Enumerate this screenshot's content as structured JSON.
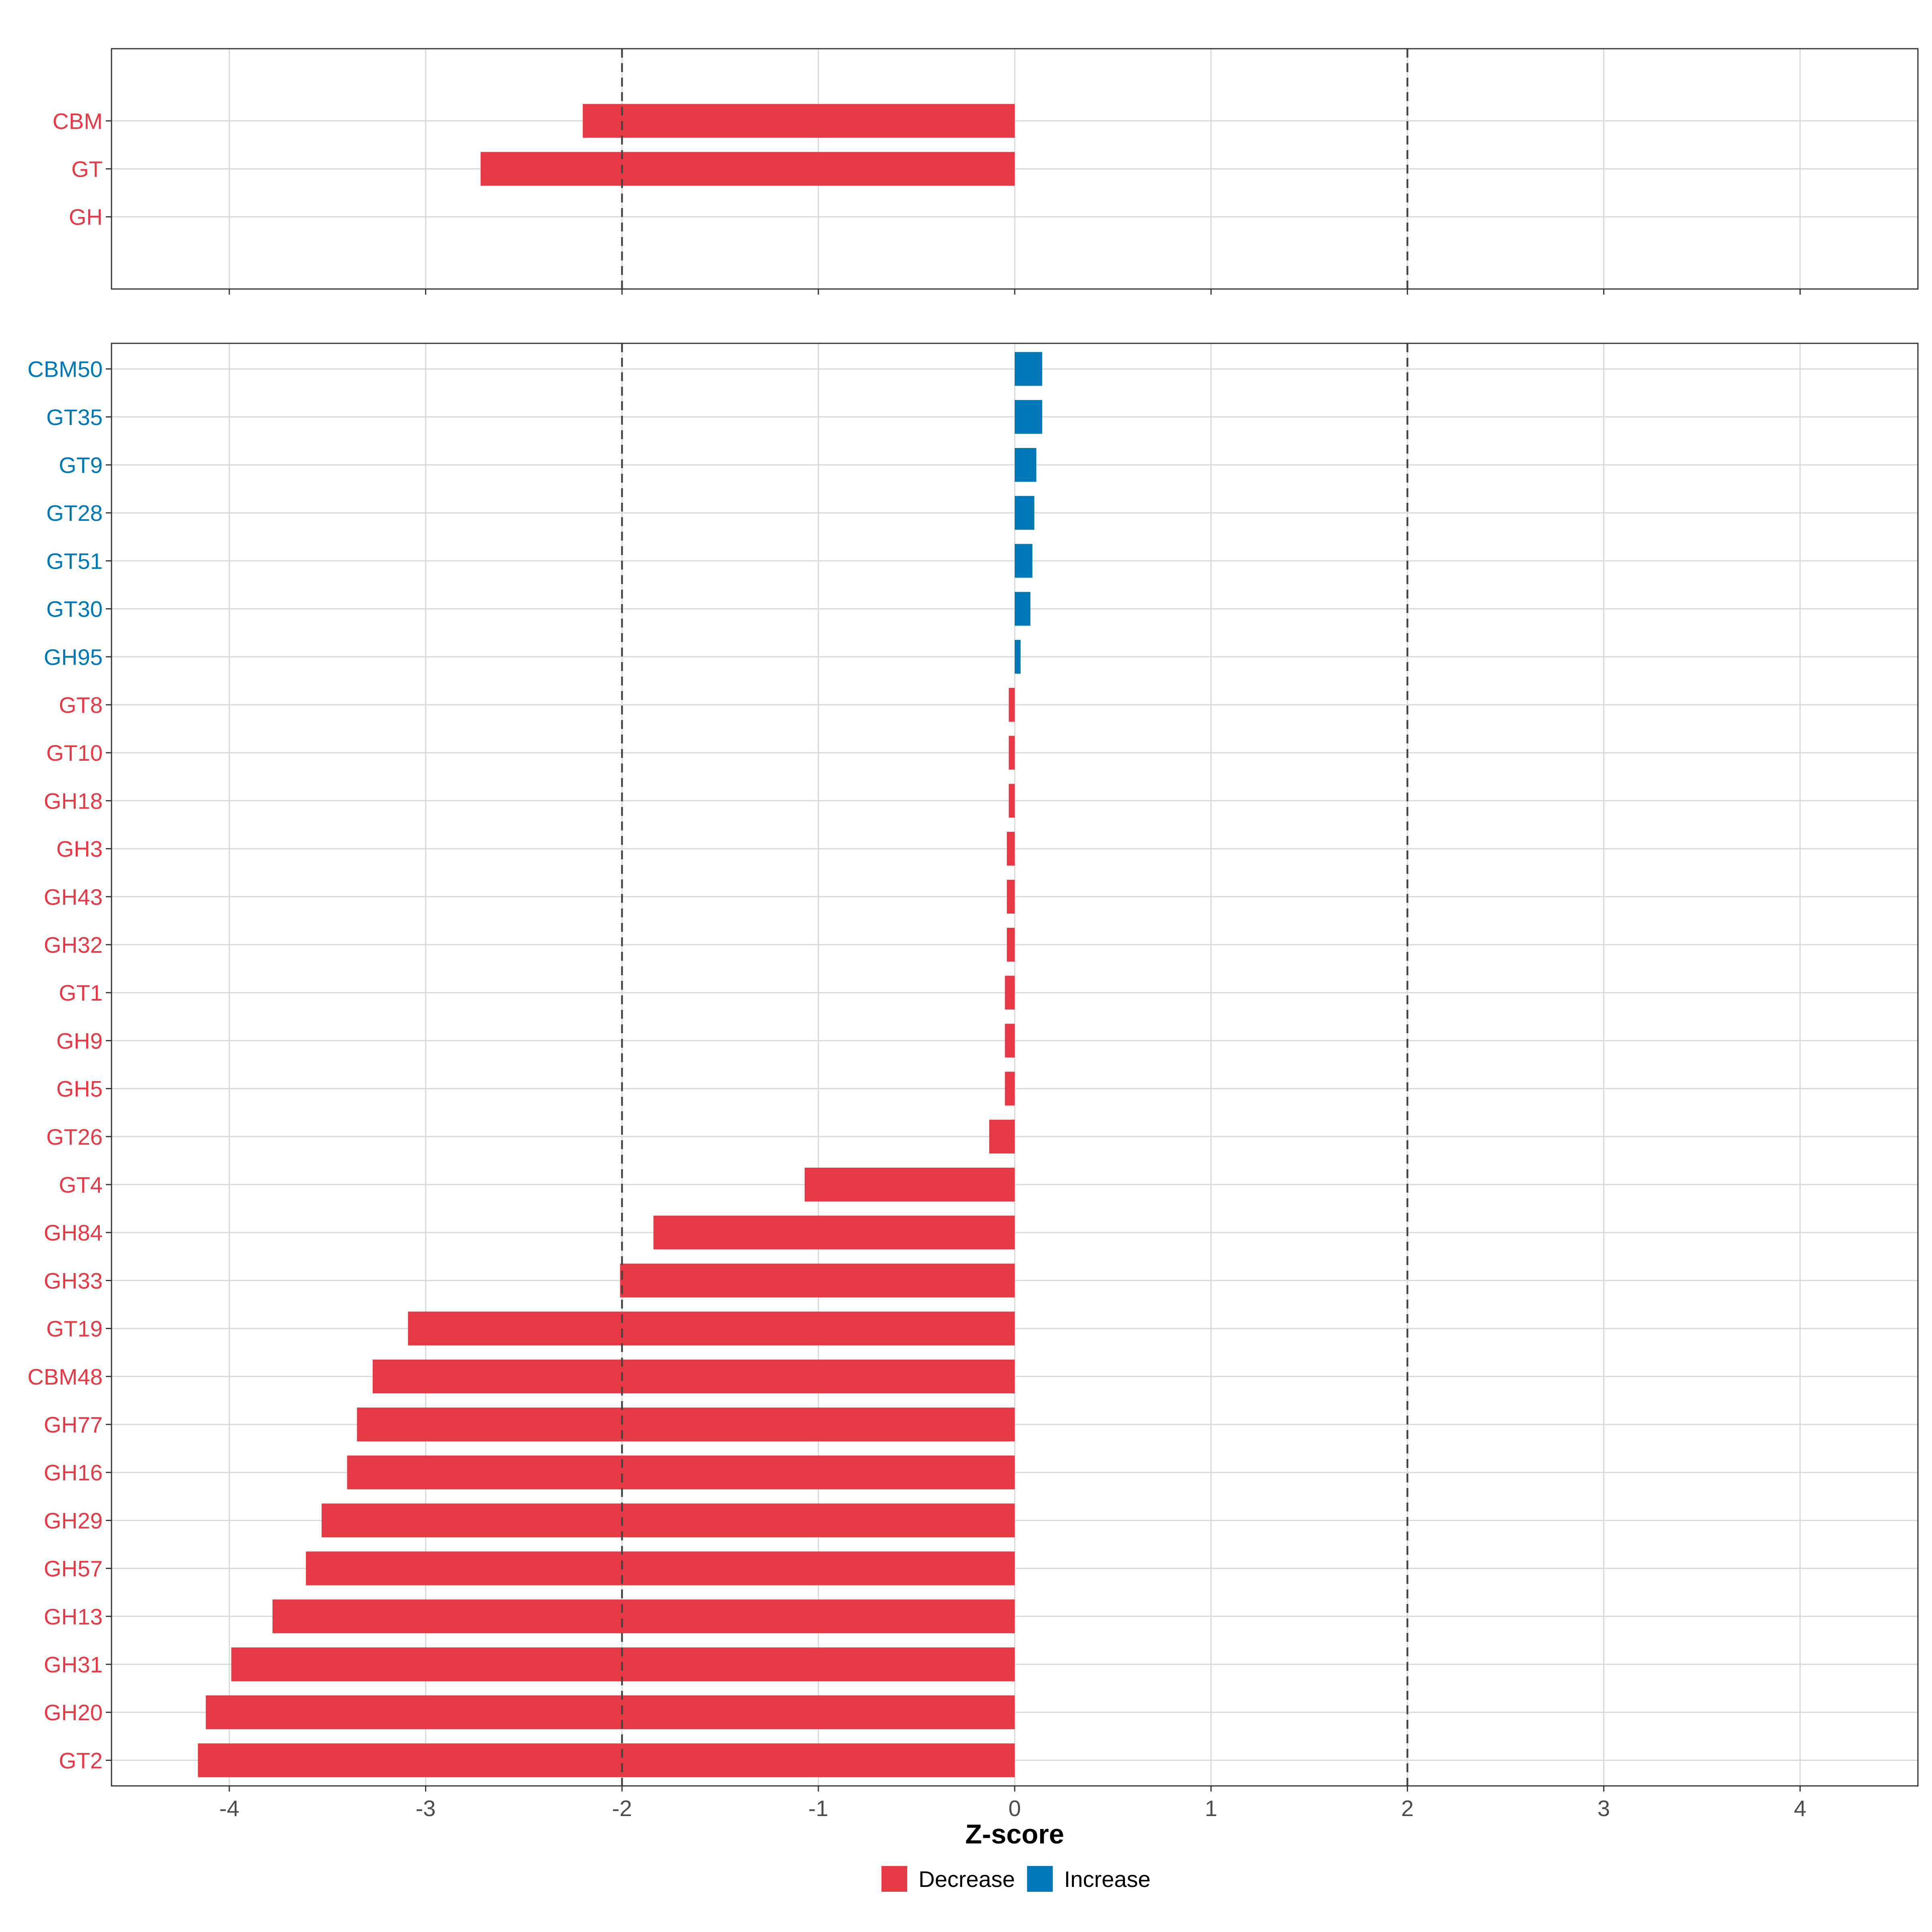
{
  "colors": {
    "decrease": "#E63946",
    "increase": "#0077B6"
  },
  "chart_data": {
    "type": "bar",
    "orientation": "horizontal",
    "xlabel": "Z-score",
    "xlim": [
      -4.6,
      4.6
    ],
    "x_ticks": [
      -4,
      -3,
      -2,
      -1,
      0,
      1,
      2,
      3,
      4
    ],
    "x_tick_labels": [
      "-4",
      "-3",
      "-2",
      "-1",
      "0",
      "1",
      "2",
      "3",
      "4"
    ],
    "reference_lines": [
      -2,
      2
    ],
    "legend": [
      {
        "key": "decrease",
        "label": "Decrease"
      },
      {
        "key": "increase",
        "label": "Increase"
      }
    ],
    "panels": [
      {
        "name": "class",
        "categories": [
          "CBM",
          "GT",
          "GH"
        ],
        "values": [
          -2.2,
          -2.72,
          0
        ],
        "direction": [
          "decrease",
          "decrease",
          "decrease"
        ]
      },
      {
        "name": "family",
        "categories": [
          "CBM50",
          "GT35",
          "GT9",
          "GT28",
          "GT51",
          "GT30",
          "GH95",
          "GT8",
          "GT10",
          "GH18",
          "GH3",
          "GH43",
          "GH32",
          "GT1",
          "GH9",
          "GH5",
          "GT26",
          "GT4",
          "GH84",
          "GH33",
          "GT19",
          "CBM48",
          "GH77",
          "GH16",
          "GH29",
          "GH57",
          "GH13",
          "GH31",
          "GH20",
          "GT2"
        ],
        "values": [
          0.14,
          0.14,
          0.11,
          0.1,
          0.09,
          0.08,
          0.03,
          -0.03,
          -0.03,
          -0.03,
          -0.04,
          -0.04,
          -0.04,
          -0.05,
          -0.05,
          -0.05,
          -0.13,
          -1.07,
          -1.84,
          -2.01,
          -3.09,
          -3.27,
          -3.35,
          -3.4,
          -3.53,
          -3.61,
          -3.78,
          -3.99,
          -4.12,
          -4.16
        ],
        "direction": [
          "increase",
          "increase",
          "increase",
          "increase",
          "increase",
          "increase",
          "increase",
          "decrease",
          "decrease",
          "decrease",
          "decrease",
          "decrease",
          "decrease",
          "decrease",
          "decrease",
          "decrease",
          "decrease",
          "decrease",
          "decrease",
          "decrease",
          "decrease",
          "decrease",
          "decrease",
          "decrease",
          "decrease",
          "decrease",
          "decrease",
          "decrease",
          "decrease",
          "decrease"
        ]
      }
    ]
  }
}
